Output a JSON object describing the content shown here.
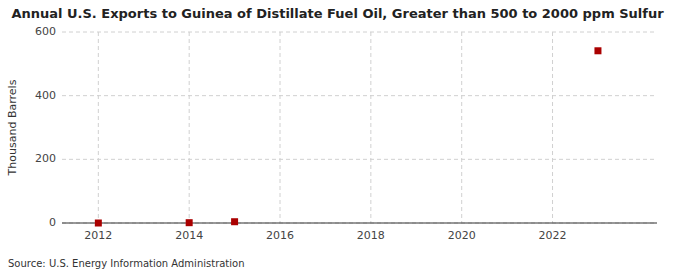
{
  "chart_data": {
    "type": "scatter",
    "title": "Annual U.S. Exports to Guinea of Distillate Fuel Oil, Greater than 500 to 2000 ppm Sulfur",
    "y_label": "Thousand Barrels",
    "source": "Source: U.S. Energy Information Administration",
    "x": [
      2012,
      2014,
      2015,
      2023
    ],
    "values": [
      0,
      1,
      4,
      541
    ],
    "color": "#aa0000",
    "marker": "square",
    "xlim": [
      2011.2,
      2024.3
    ],
    "xticks": [
      2012,
      2014,
      2016,
      2018,
      2020,
      2022
    ],
    "ylim": [
      0,
      600
    ],
    "yticks": [
      0,
      200,
      400,
      600
    ],
    "grid": true
  }
}
